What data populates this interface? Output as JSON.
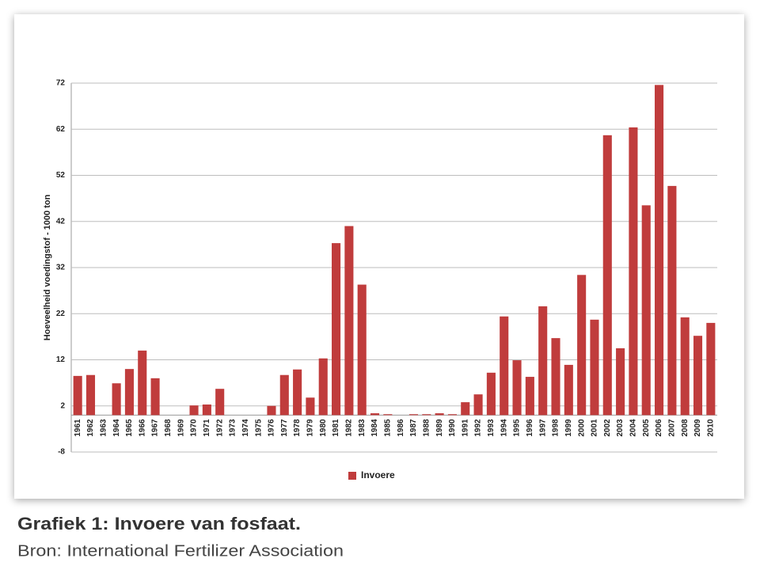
{
  "chart_data": {
    "type": "bar",
    "y_label": "Hoeveelheid voedingstof - 1000 ton",
    "caption": "Grafiek 1: Invoere van fosfaat.",
    "source": "Bron: International Fertilizer Association",
    "categories": [
      "1961",
      "1962",
      "1963",
      "1964",
      "1965",
      "1966",
      "1967",
      "1968",
      "1969",
      "1970",
      "1971",
      "1972",
      "1973",
      "1974",
      "1975",
      "1976",
      "1977",
      "1978",
      "1979",
      "1980",
      "1981",
      "1982",
      "1983",
      "1984",
      "1985",
      "1986",
      "1987",
      "1988",
      "1989",
      "1990",
      "1991",
      "1992",
      "1993",
      "1994",
      "1995",
      "1996",
      "1997",
      "1998",
      "1999",
      "2000",
      "2001",
      "2002",
      "2003",
      "2004",
      "2005",
      "2006",
      "2007",
      "2008",
      "2009",
      "2010"
    ],
    "series": [
      {
        "name": "Invoere",
        "color": "#c03c3c",
        "values": [
          8.5,
          8.7,
          0,
          6.9,
          10,
          14,
          8,
          0,
          0,
          2.1,
          2.3,
          5.7,
          0,
          0,
          0,
          2,
          8.7,
          9.9,
          3.8,
          12.3,
          37.3,
          41,
          28.3,
          0.4,
          0.2,
          0,
          0.2,
          0.2,
          0.4,
          0.2,
          2.8,
          4.5,
          9.2,
          21.4,
          11.9,
          8.3,
          23.6,
          16.7,
          10.9,
          30.4,
          20.7,
          60.7,
          14.5,
          62.4,
          45.5,
          71.6,
          49.7,
          21.2,
          17.2,
          20
        ]
      }
    ],
    "ylim": [
      -8,
      72
    ],
    "yticks": [
      -8,
      2,
      12,
      22,
      32,
      42,
      52,
      62,
      72
    ],
    "grid": true,
    "legend": "bottom"
  }
}
